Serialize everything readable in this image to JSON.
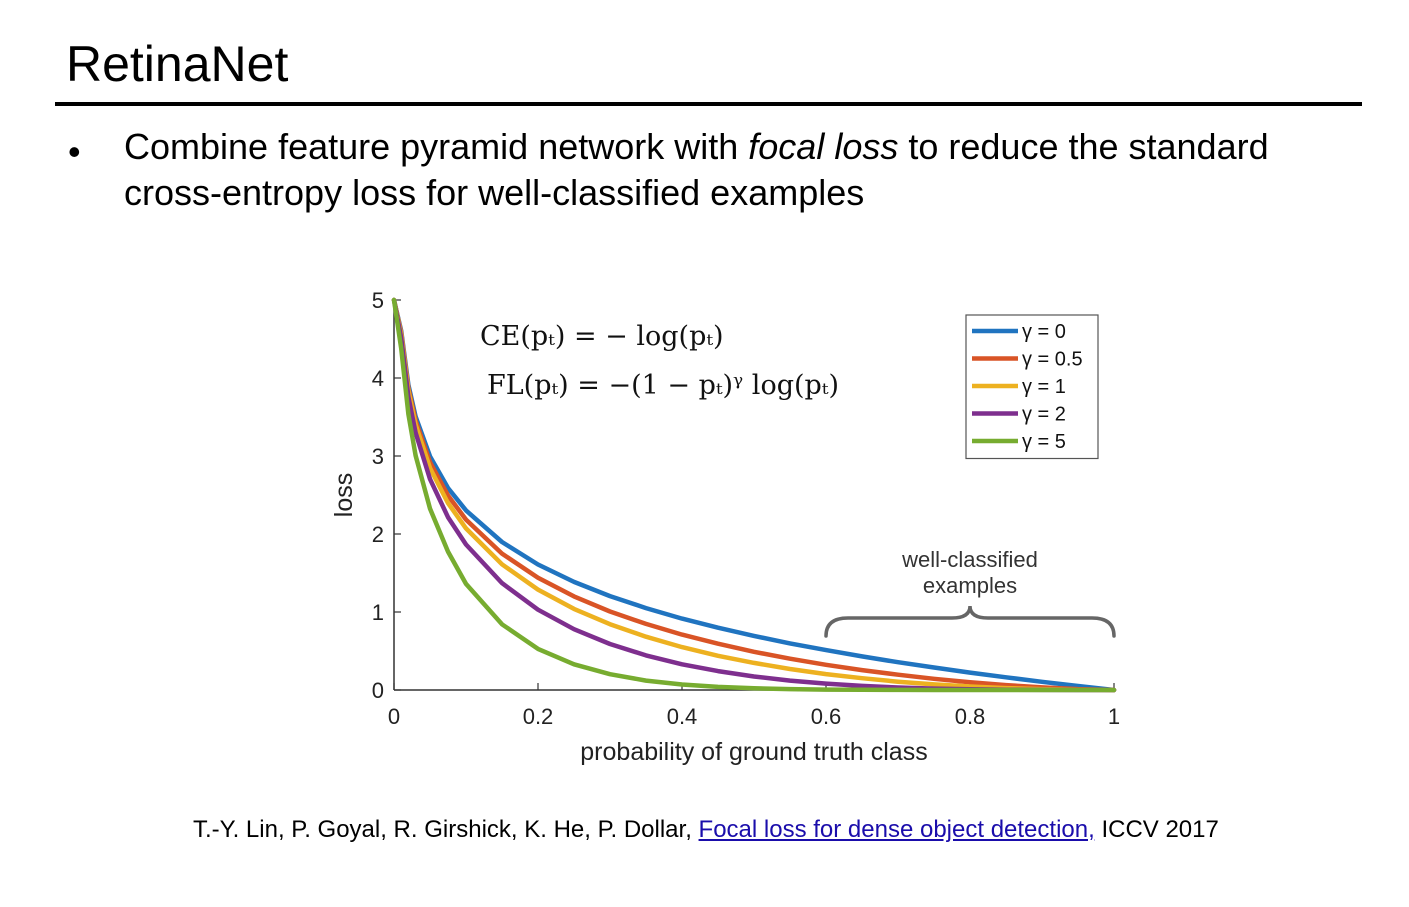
{
  "slide": {
    "title": "RetinaNet",
    "bullet_symbol": "•",
    "bullet_before": "Combine feature pyramid network with ",
    "bullet_emphasis": "focal loss",
    "bullet_after": " to reduce the standard cross-entropy loss for well-classified examples"
  },
  "citation": {
    "prefix": "T.-Y. Lin, P. Goyal, R. Girshick, K. He, P. Dollar, ",
    "link_text": "Focal loss for dense object detection,",
    "suffix": " ICCV 2017"
  },
  "chart_data": {
    "type": "line",
    "title": "",
    "xlabel": "probability of ground truth class",
    "ylabel": "loss",
    "xlim": [
      0,
      1
    ],
    "ylim": [
      0,
      5
    ],
    "xticks": [
      "0",
      "0.2",
      "0.4",
      "0.6",
      "0.8",
      "1"
    ],
    "yticks": [
      "0",
      "1",
      "2",
      "3",
      "4",
      "5"
    ],
    "grid": false,
    "legend_position": "top-right",
    "formulas": [
      "CE(pₜ) = − log(pₜ)",
      "FL(pₜ) = −(1 − pₜ)ᵞ log(pₜ)"
    ],
    "annotation": [
      "well-classified",
      "examples"
    ],
    "annotation_range": [
      0.6,
      1.0
    ],
    "x": [
      0.01,
      0.02,
      0.03,
      0.05,
      0.075,
      0.1,
      0.15,
      0.2,
      0.25,
      0.3,
      0.35,
      0.4,
      0.45,
      0.5,
      0.55,
      0.6,
      0.65,
      0.7,
      0.75,
      0.8,
      0.85,
      0.9,
      0.95,
      1.0
    ],
    "series": [
      {
        "name": "γ = 0",
        "color": "#2074c0",
        "values": [
          4.605,
          3.912,
          3.507,
          2.996,
          2.59,
          2.303,
          1.897,
          1.609,
          1.386,
          1.204,
          1.05,
          0.916,
          0.799,
          0.693,
          0.598,
          0.511,
          0.431,
          0.357,
          0.288,
          0.223,
          0.163,
          0.105,
          0.051,
          0.0
        ]
      },
      {
        "name": "γ = 0.5",
        "color": "#d95426",
        "values": [
          4.582,
          3.872,
          3.454,
          2.92,
          2.494,
          2.185,
          1.749,
          1.439,
          1.2,
          1.007,
          0.847,
          0.71,
          0.593,
          0.49,
          0.401,
          0.323,
          0.255,
          0.196,
          0.144,
          0.1,
          0.063,
          0.033,
          0.011,
          0.0
        ]
      },
      {
        "name": "γ = 1",
        "color": "#edb120",
        "values": [
          4.559,
          3.834,
          3.402,
          2.846,
          2.396,
          2.072,
          1.612,
          1.287,
          1.04,
          0.843,
          0.683,
          0.55,
          0.439,
          0.347,
          0.269,
          0.204,
          0.151,
          0.107,
          0.072,
          0.045,
          0.024,
          0.011,
          0.003,
          0.0
        ]
      },
      {
        "name": "γ = 2",
        "color": "#7e2f8e",
        "values": [
          4.513,
          3.757,
          3.299,
          2.704,
          2.216,
          1.865,
          1.371,
          1.03,
          0.78,
          0.59,
          0.444,
          0.33,
          0.242,
          0.173,
          0.121,
          0.082,
          0.053,
          0.032,
          0.018,
          0.009,
          0.004,
          0.001,
          0.0,
          0.0
        ]
      },
      {
        "name": "γ = 5",
        "color": "#77ac30",
        "values": [
          4.379,
          3.535,
          3.007,
          2.325,
          1.775,
          1.36,
          0.842,
          0.527,
          0.329,
          0.202,
          0.121,
          0.071,
          0.04,
          0.022,
          0.011,
          0.005,
          0.002,
          0.001,
          0.0,
          0.0,
          0.0,
          0.0,
          0.0,
          0.0
        ]
      }
    ]
  }
}
